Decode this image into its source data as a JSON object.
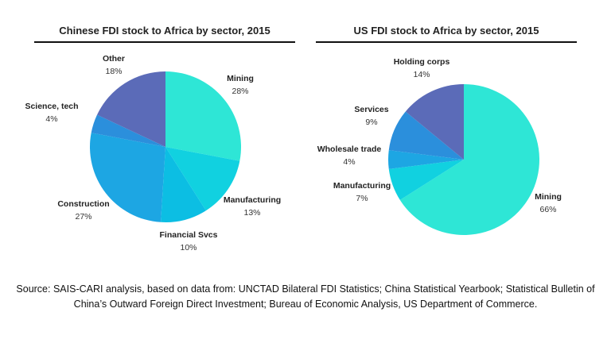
{
  "chart_data": [
    {
      "type": "pie",
      "title": "Chinese FDI stock to Africa by sector, 2015",
      "slices": [
        {
          "label": "Mining",
          "value": 28,
          "pct": "28%",
          "color": "#2ee6d6"
        },
        {
          "label": "Manufacturing",
          "value": 13,
          "pct": "13%",
          "color": "#11d1e0"
        },
        {
          "label": "Financial Svcs",
          "value": 10,
          "pct": "10%",
          "color": "#0cbee3"
        },
        {
          "label": "Construction",
          "value": 27,
          "pct": "27%",
          "color": "#1da6e3"
        },
        {
          "label": "Science, tech",
          "value": 4,
          "pct": "4%",
          "color": "#2b8fdc"
        },
        {
          "label": "Other",
          "value": 18,
          "pct": "18%",
          "color": "#5b6bb8"
        }
      ]
    },
    {
      "type": "pie",
      "title": "US FDI stock to Africa by sector, 2015",
      "slices": [
        {
          "label": "Mining",
          "value": 66,
          "pct": "66%",
          "color": "#2ee6d6"
        },
        {
          "label": "Manufacturing",
          "value": 7,
          "pct": "7%",
          "color": "#11d1e0"
        },
        {
          "label": "Wholesale trade",
          "value": 4,
          "pct": "4%",
          "color": "#1da6e3"
        },
        {
          "label": "Services",
          "value": 9,
          "pct": "9%",
          "color": "#2b8fdc"
        },
        {
          "label": "Holding corps",
          "value": 14,
          "pct": "14%",
          "color": "#5b6bb8"
        }
      ]
    }
  ],
  "source": "Source: SAIS-CARI analysis, based on data from: UNCTAD Bilateral FDI Statistics; China Statistical Yearbook; Statistical Bulletin of China’s Outward Foreign Direct Investment; Bureau of Economic Analysis, US Department of Commerce."
}
